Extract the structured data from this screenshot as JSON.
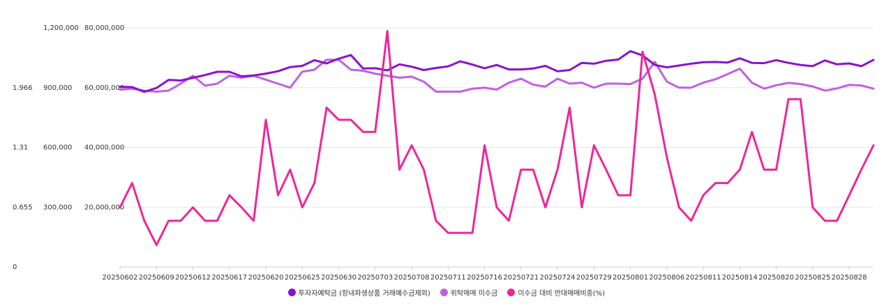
{
  "chart_data": {
    "type": "line",
    "y_axes": [
      {
        "id": "pct",
        "ticks": [
          "0",
          "0.655",
          "1.31",
          "1.966"
        ],
        "ylim": [
          0,
          1.966
        ]
      },
      {
        "id": "margin",
        "ticks": [
          "300,000",
          "600,000",
          "900,000",
          "1,200,000"
        ],
        "ylim": [
          0,
          1200000
        ]
      },
      {
        "id": "deposit",
        "ticks": [
          "20,000,000",
          "40,000,000",
          "60,000,000",
          "80,000,000"
        ],
        "ylim": [
          0,
          80000000
        ]
      }
    ],
    "x_tick_labels": [
      "20250602",
      "20250609",
      "20250612",
      "20250617",
      "20250620",
      "20250625",
      "20250630",
      "20250703",
      "20250708",
      "20250711",
      "20250716",
      "20250721",
      "20250724",
      "20250729",
      "20250801",
      "20250806",
      "20250811",
      "20250814",
      "20250820",
      "20250825",
      "20250828"
    ],
    "x_tick_indices": [
      0,
      3,
      6,
      9,
      12,
      15,
      18,
      21,
      24,
      27,
      30,
      33,
      36,
      39,
      42,
      45,
      48,
      51,
      54,
      57,
      60
    ],
    "grid": true,
    "legend_position": "bottom",
    "series": [
      {
        "name": "투자자예탁금 (장내파생상품 거래예수금제외)",
        "axis": "deposit",
        "color": "#8a12cc",
        "values": [
          60300000,
          60200000,
          58600000,
          59900000,
          62600000,
          62400000,
          63300000,
          64200000,
          65300000,
          65300000,
          63800000,
          64100000,
          64700000,
          65500000,
          66900000,
          67300000,
          69200000,
          68100000,
          69700000,
          70900000,
          66400000,
          66500000,
          65800000,
          67800000,
          67000000,
          65900000,
          66600000,
          67100000,
          68800000,
          67700000,
          66500000,
          67600000,
          66100000,
          66100000,
          66400000,
          67300000,
          65500000,
          65900000,
          68300000,
          68000000,
          69000000,
          69400000,
          72200000,
          70800000,
          67600000,
          66800000,
          67400000,
          68000000,
          68500000,
          68600000,
          68400000,
          69800000,
          68300000,
          68200000,
          69200000,
          68300000,
          67600000,
          67200000,
          69100000,
          67800000,
          68100000,
          67200000,
          69300000
        ]
      },
      {
        "name": "위탁매매 미수금",
        "axis": "margin",
        "color": "#c060e0",
        "values": [
          890000,
          895000,
          885000,
          880000,
          885000,
          920000,
          960000,
          910000,
          920000,
          960000,
          950000,
          960000,
          940000,
          920000,
          900000,
          980000,
          990000,
          1040000,
          1040000,
          990000,
          985000,
          970000,
          960000,
          950000,
          955000,
          930000,
          880000,
          880000,
          880000,
          895000,
          900000,
          890000,
          925000,
          945000,
          915000,
          905000,
          945000,
          920000,
          925000,
          900000,
          920000,
          920000,
          918000,
          945000,
          1030000,
          930000,
          900000,
          900000,
          925000,
          942000,
          968000,
          995000,
          925000,
          895000,
          912000,
          924000,
          918000,
          906000,
          885000,
          896000,
          914000,
          911000,
          895000
        ]
      },
      {
        "name": "미수금 대비 반대매매비중(%)",
        "axis": "pct",
        "color": "#f0259a",
        "values": [
          0.49,
          0.69,
          0.38,
          0.18,
          0.38,
          0.38,
          0.49,
          0.38,
          0.38,
          0.59,
          0.49,
          0.38,
          1.21,
          0.59,
          0.8,
          0.49,
          0.69,
          1.31,
          1.21,
          1.21,
          1.11,
          1.11,
          1.94,
          0.8,
          1.0,
          0.8,
          0.38,
          0.28,
          0.28,
          0.28,
          1.0,
          0.49,
          0.38,
          0.8,
          0.8,
          0.49,
          0.8,
          1.31,
          0.49,
          1.0,
          0.8,
          0.59,
          0.59,
          1.77,
          1.42,
          0.9,
          0.49,
          0.38,
          0.59,
          0.69,
          0.69,
          0.8,
          1.11,
          0.8,
          0.8,
          1.38,
          1.38,
          0.49,
          0.38,
          0.38,
          0.59,
          0.8,
          1.0
        ]
      }
    ]
  }
}
